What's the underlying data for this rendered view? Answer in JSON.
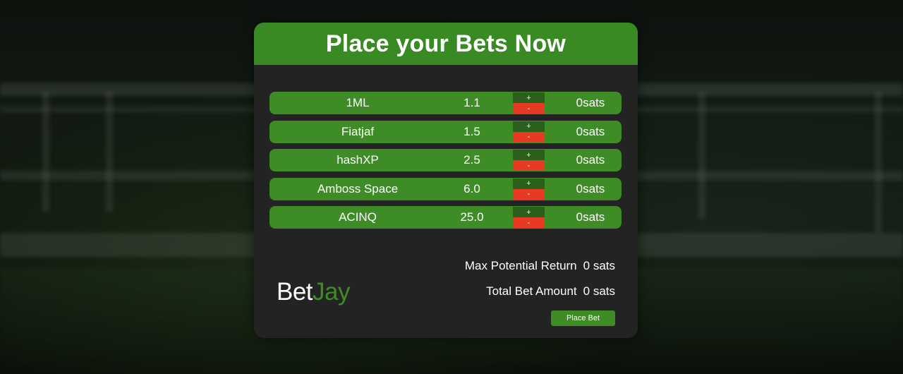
{
  "header": {
    "title": "Place your Bets Now"
  },
  "bets": [
    {
      "name": "1ML",
      "odds": "1.1",
      "plus": "+",
      "minus": "-",
      "amount": "0sats"
    },
    {
      "name": "Fiatjaf",
      "odds": "1.5",
      "plus": "+",
      "minus": "-",
      "amount": "0sats"
    },
    {
      "name": "hashXP",
      "odds": "2.5",
      "plus": "+",
      "minus": "-",
      "amount": "0sats"
    },
    {
      "name": "Amboss Space",
      "odds": "6.0",
      "plus": "+",
      "minus": "-",
      "amount": "0sats"
    },
    {
      "name": "ACINQ",
      "odds": "25.0",
      "plus": "+",
      "minus": "-",
      "amount": "0sats"
    }
  ],
  "summary": {
    "max_return_label": "Max Potential Return",
    "max_return_value": "0 sats",
    "total_bet_label": "Total Bet Amount",
    "total_bet_value": "0 sats"
  },
  "logo": {
    "part1": "Bet",
    "part2": "Jay"
  },
  "actions": {
    "place_bet_label": "Place Bet"
  },
  "colors": {
    "accent_green": "#3d8c25",
    "header_green": "#3a8a24",
    "plus_green": "#2b5f1c",
    "minus_red": "#e63a22",
    "panel_bg": "#232323"
  }
}
